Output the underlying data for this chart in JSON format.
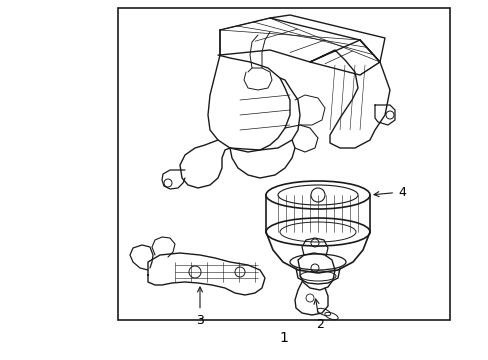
{
  "background_color": "#ffffff",
  "border_color": "#1a1a1a",
  "line_color": "#1a1a1a",
  "text_color": "#000000",
  "label_1": "1",
  "label_2": "2",
  "label_3": "3",
  "label_4": "4",
  "figw": 4.89,
  "figh": 3.6,
  "dpi": 100
}
